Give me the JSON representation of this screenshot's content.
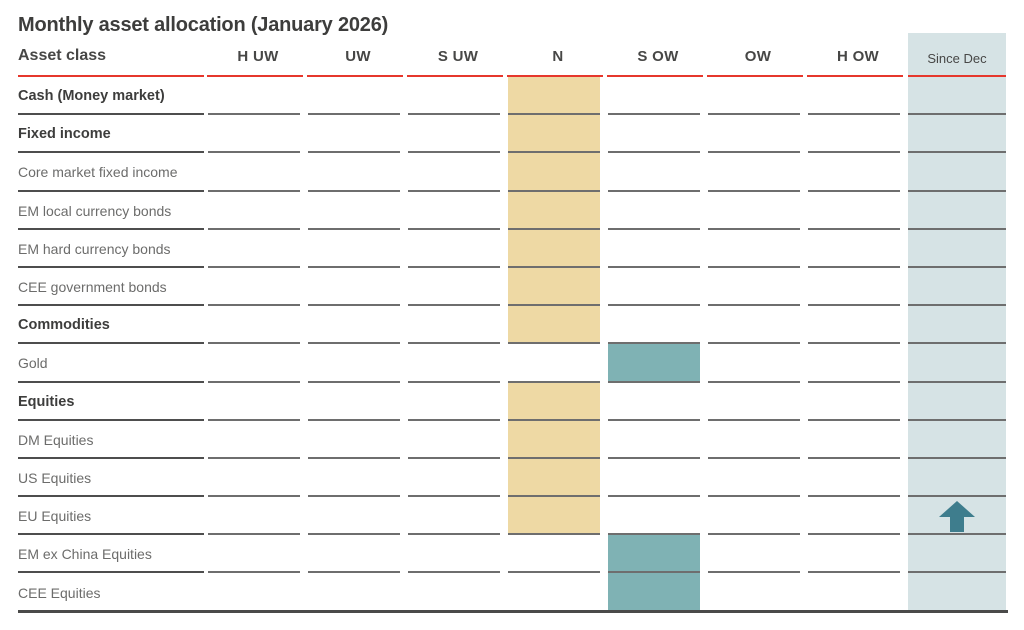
{
  "title": "Monthly asset allocation (January 2026)",
  "header": {
    "label_column": "Asset class",
    "weight_columns": [
      "H UW",
      "UW",
      "S UW",
      "N",
      "S OW",
      "OW",
      "H OW"
    ],
    "since_dec_column": "Since Dec"
  },
  "chart_data": {
    "type": "table",
    "title": "Monthly asset allocation (January 2026)",
    "columns": [
      "H UW",
      "UW",
      "S UW",
      "N",
      "S OW",
      "OW",
      "H OW",
      "Since Dec"
    ],
    "rows": [
      {
        "label": "Cash (Money market)",
        "group": true,
        "allocation": "N",
        "since_dec": null
      },
      {
        "label": "Fixed income",
        "group": true,
        "allocation": "N",
        "since_dec": null
      },
      {
        "label": "Core market fixed income",
        "group": false,
        "allocation": "N",
        "since_dec": null
      },
      {
        "label": "EM local currency bonds",
        "group": false,
        "allocation": "N",
        "since_dec": null
      },
      {
        "label": "EM hard currency bonds",
        "group": false,
        "allocation": "N",
        "since_dec": null
      },
      {
        "label": "CEE government bonds",
        "group": false,
        "allocation": "N",
        "since_dec": null
      },
      {
        "label": "Commodities",
        "group": true,
        "allocation": "N",
        "since_dec": null
      },
      {
        "label": "Gold",
        "group": false,
        "allocation": "S OW",
        "since_dec": null
      },
      {
        "label": "Equities",
        "group": true,
        "allocation": "N",
        "since_dec": null
      },
      {
        "label": "DM Equities",
        "group": false,
        "allocation": "N",
        "since_dec": null
      },
      {
        "label": "US Equities",
        "group": false,
        "allocation": "N",
        "since_dec": null
      },
      {
        "label": "EU Equities",
        "group": false,
        "allocation": "N",
        "since_dec": "up"
      },
      {
        "label": "EM ex China Equities",
        "group": false,
        "allocation": "S OW",
        "since_dec": null
      },
      {
        "label": "CEE Equities",
        "group": false,
        "allocation": "S OW",
        "since_dec": null
      }
    ]
  },
  "allocation_fills": {
    "N": "fill_neutral",
    "S OW": "fill_overweight"
  },
  "colors": {
    "accent_red": "#e6372c",
    "fill_neutral": "#eed9a4",
    "fill_overweight": "#7fb2b4",
    "since_dec_bg": "#d6e3e5",
    "arrow": "#3e7d8d",
    "row_line": "#6e6e6e",
    "label_line": "#4e4e4e",
    "bottom_line": "#4a4a49",
    "text_dark": "#3d3d3c",
    "text_header": "#474746",
    "text_gray": "#6c6c6b"
  }
}
